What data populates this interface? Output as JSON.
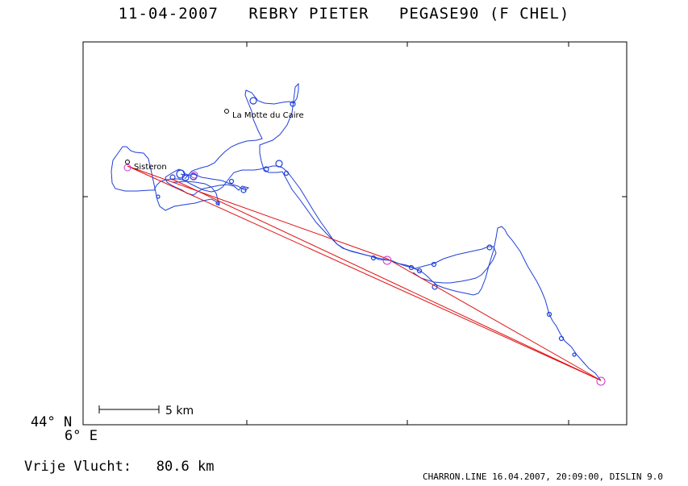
{
  "title": "11-04-2007   REBRY PIETER   PEGASE90 (F CHEL)",
  "map": {
    "towns": [
      {
        "name": "La Motte du Caire"
      },
      {
        "name": "Sisteron"
      }
    ],
    "scale_label": "5 km",
    "lat_label": "44° N",
    "lon_label": "6° E",
    "colors": {
      "track": "#1f3fd8",
      "route": "#e01010",
      "turnpoint": "#cc33cc",
      "frame": "#000000"
    }
  },
  "summary": {
    "label": "Vrije Vlucht:",
    "value": "80.6 km"
  },
  "footer": "CHARRON.LINE 16.04.2007, 20:09:00, DISLIN 9.0"
}
